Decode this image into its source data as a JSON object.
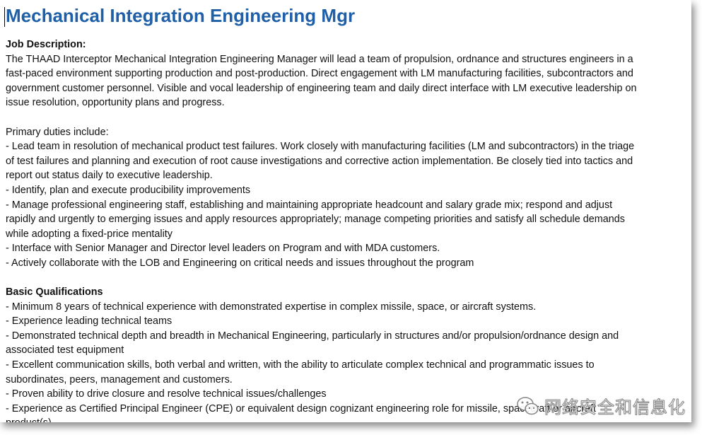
{
  "document": {
    "title": "Mechanical Integration Engineering Mgr",
    "job_description_heading": "Job Description:",
    "job_description_lines": [
      "The THAAD Interceptor Mechanical Integration Engineering Manager will lead a team of propulsion, ordnance and structures engineers in a",
      "fast-paced environment supporting production and post-production. Direct engagement with LM manufacturing facilities, subcontractors and",
      "government customer personnel. Visible and vocal leadership of engineering team and daily direct interface with LM executive leadership on",
      "issue resolution, opportunity plans and progress."
    ],
    "primary_duties_heading": "Primary duties include:",
    "primary_duties_lines": [
      "- Lead team in resolution of mechanical product test failures. Work closely with manufacturing facilities (LM and subcontractors) in the triage",
      "of test failures and planning and execution of root cause investigations and corrective action implementation. Be closely tied into tactics and",
      "report out status daily to executive leadership.",
      "- Identify, plan and execute producibility improvements",
      "- Manage professional engineering staff, establishing and maintaining appropriate headcount and salary grade mix; respond and adjust",
      "rapidly and urgently to emerging issues and apply resources appropriately; manage competing priorities and satisfy all schedule demands",
      "while adopting a fixed-price mentality",
      "- Interface with Senior Manager and Director level leaders on Program and with MDA customers.",
      "- Actively collaborate with the LOB and Engineering on critical needs and issues throughout the program"
    ],
    "basic_qualifications_heading": "Basic Qualifications",
    "basic_qualifications_lines": [
      "- Minimum 8 years of technical experience with demonstrated expertise in complex missile, space, or aircraft systems.",
      "- Experience leading technical teams",
      "- Demonstrated technical depth and breadth in Mechanical Engineering, particularly in structures and/or propulsion/ordnance design and",
      "associated test equipment",
      "- Excellent communication skills, both verbal and written, with the ability to articulate complex technical and programmatic issues to",
      "subordinates, peers, management and customers.",
      "- Proven ability to drive closure and resolve technical issues/challenges",
      "- Experience as Certified Principal Engineer (CPE) or equivalent design cognizant engineering role for missile, spacecraft or aircraft",
      "product(s)"
    ]
  },
  "watermark": {
    "text": "网络安全和信息化",
    "icon": "wechat-icon"
  },
  "colors": {
    "title": "#1F5FA8",
    "text": "#111111",
    "background": "#ffffff"
  }
}
